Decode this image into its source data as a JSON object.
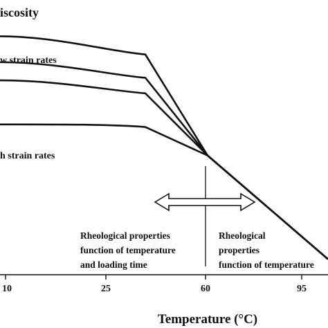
{
  "chart_data": {
    "type": "line",
    "ylabel": "iscosity",
    "xlabel": "Temperature (°C)",
    "x_ticks": [
      "10",
      "25",
      "60",
      "95"
    ],
    "series": [
      {
        "values": [
          [
            10,
            4.3
          ],
          [
            40,
            3.95
          ],
          [
            60,
            2.0
          ],
          [
            100,
            0
          ]
        ]
      },
      {
        "values": [
          [
            10,
            3.8
          ],
          [
            40,
            3.5
          ],
          [
            60,
            2.0
          ],
          [
            100,
            0
          ]
        ]
      },
      {
        "values": [
          [
            10,
            3.45
          ],
          [
            40,
            3.2
          ],
          [
            60,
            2.0
          ],
          [
            100,
            0
          ]
        ]
      },
      {
        "values": [
          [
            10,
            2.6
          ],
          [
            40,
            2.55
          ],
          [
            60,
            2.0
          ],
          [
            100,
            0
          ]
        ]
      }
    ],
    "xlim": [
      10,
      100
    ],
    "ylim": [
      -0.3,
      5.0
    ],
    "divider_x": 60,
    "annotations": {
      "low_strain": "w strain rates",
      "high_strain": "h strain rates",
      "left_region": [
        "Rheological properties",
        "function of temperature",
        "and loading time"
      ],
      "right_region": [
        "Rheological",
        "properties",
        "function of temperature"
      ]
    }
  }
}
